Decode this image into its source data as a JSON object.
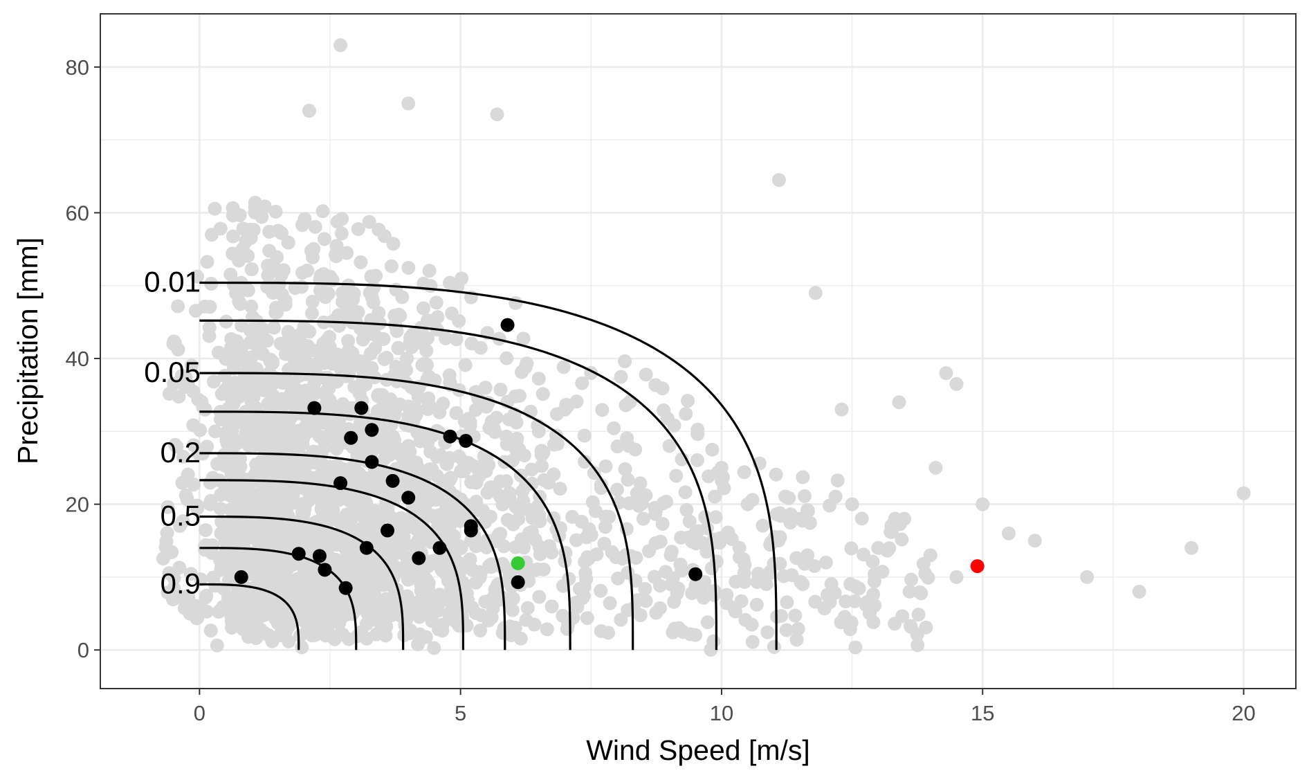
{
  "chart_data": {
    "type": "scatter",
    "xlabel": "Wind Speed [m/s]",
    "ylabel": "Precipitation [mm]",
    "xlim": [
      -1.9,
      21.0
    ],
    "ylim": [
      -5.3,
      87.3
    ],
    "x_ticks": [
      0,
      5,
      10,
      15,
      20
    ],
    "x_tick_labels": [
      "0",
      "5",
      "10",
      "15",
      "20"
    ],
    "y_ticks": [
      0,
      20,
      40,
      60,
      80
    ],
    "y_tick_labels": [
      "0",
      "20",
      "40",
      "60",
      "80"
    ],
    "grid": true,
    "legend": "none",
    "colors": {
      "background_points": "#d9d9d9",
      "highlight_points": "#000000",
      "green_point": "#33cc33",
      "red_point": "#ff0000",
      "contours": "#000000"
    },
    "background_points": {
      "name": "",
      "x": [
        1.0,
        1.4,
        1.8,
        2.1,
        2.6,
        3.0,
        3.5,
        4.0,
        4.5,
        5.0,
        5.5,
        6.0,
        6.5,
        7.0,
        7.5,
        8.0,
        8.5,
        9.0,
        9.5,
        10.0,
        10.5,
        11.0,
        11.5,
        12.0,
        12.5,
        13.0,
        13.5,
        14.0,
        14.5,
        15.0,
        15.5,
        16.0,
        17.0,
        18.0,
        19.0,
        20.0,
        2.7,
        4.0,
        5.7,
        2.1,
        11.1,
        0.2,
        0.6,
        0.3,
        14.3,
        14.5,
        13.4,
        14.1,
        12.3,
        11.8
      ],
      "y": [
        12.0,
        20.0,
        25.0,
        30.0,
        40.0,
        45.0,
        35.0,
        28.0,
        22.0,
        18.0,
        15.0,
        26.0,
        30.0,
        33.0,
        38.0,
        22.0,
        18.0,
        28.0,
        15.0,
        25.0,
        20.0,
        15.0,
        18.0,
        12.0,
        20.0,
        14.0,
        18.0,
        13.0,
        10.0,
        20.0,
        16.0,
        15.0,
        10.0,
        8.0,
        14.0,
        21.5,
        83.0,
        75.0,
        73.5,
        74.0,
        64.5,
        20.0,
        10.0,
        30.0,
        38.0,
        36.5,
        34.0,
        25.0,
        33.0,
        49.0
      ]
    },
    "highlight_points": {
      "name": "",
      "x": [
        0.8,
        1.9,
        2.3,
        2.4,
        2.8,
        2.2,
        2.7,
        2.9,
        3.1,
        3.3,
        3.3,
        3.2,
        3.6,
        3.7,
        4.0,
        4.2,
        4.6,
        4.8,
        5.1,
        5.2,
        5.2,
        5.9,
        6.1,
        9.5
      ],
      "y": [
        10.0,
        13.2,
        12.9,
        11.0,
        8.5,
        33.2,
        22.9,
        29.1,
        33.2,
        30.2,
        25.8,
        14.0,
        16.4,
        23.2,
        20.9,
        12.6,
        14.0,
        29.3,
        28.7,
        17.0,
        16.4,
        44.6,
        9.3,
        10.4
      ]
    },
    "special_points": [
      {
        "name": "",
        "x": 6.1,
        "y": 11.9,
        "color": "#33cc33"
      },
      {
        "name": "",
        "x": 14.9,
        "y": 11.5,
        "color": "#ff0000"
      }
    ],
    "contours": [
      {
        "label": "0.9",
        "x_max": 1.9,
        "y_max": 9.0,
        "labelled": true
      },
      {
        "label": "",
        "x_max": 3.0,
        "y_max": 14.0,
        "labelled": false
      },
      {
        "label": "0.5",
        "x_max": 3.9,
        "y_max": 18.3,
        "labelled": true
      },
      {
        "label": "",
        "x_max": 5.05,
        "y_max": 23.3,
        "labelled": false
      },
      {
        "label": "0.2",
        "x_max": 5.85,
        "y_max": 27.0,
        "labelled": true
      },
      {
        "label": "",
        "x_max": 7.1,
        "y_max": 32.7,
        "labelled": false
      },
      {
        "label": "0.05",
        "x_max": 8.3,
        "y_max": 38.0,
        "labelled": true
      },
      {
        "label": "",
        "x_max": 9.9,
        "y_max": 45.2,
        "labelled": false
      },
      {
        "label": "0.01",
        "x_max": 11.05,
        "y_max": 50.4,
        "labelled": true
      }
    ]
  }
}
